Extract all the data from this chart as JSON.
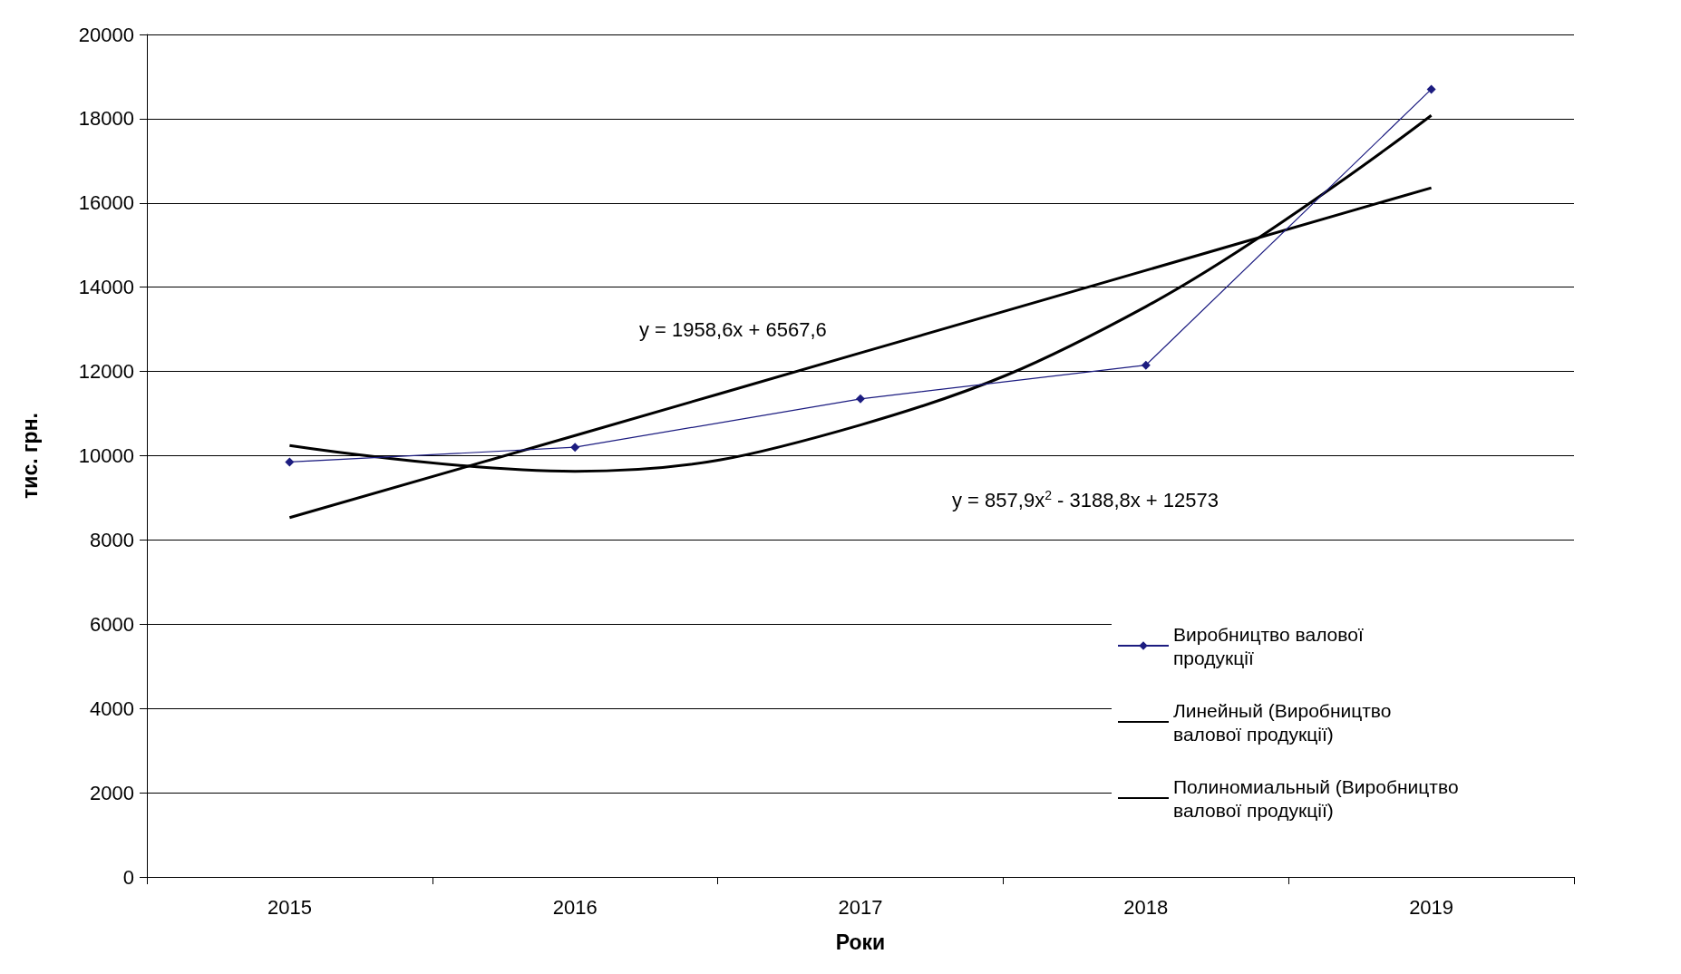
{
  "chart_data": {
    "type": "line",
    "xlabel": "Роки",
    "ylabel": "тис. грн.",
    "categories": [
      "2015",
      "2016",
      "2017",
      "2018",
      "2019"
    ],
    "series": [
      {
        "name": "Виробництво валової продукції",
        "color": "#1c1c80",
        "marker": "diamond",
        "values": [
          9850,
          10200,
          11350,
          12150,
          18700
        ]
      },
      {
        "name": "Линейный (Виробництво валової продукції)",
        "color": "#000000",
        "marker": "none",
        "values": [
          8530,
          10480,
          12440,
          14400,
          16360
        ]
      },
      {
        "name": "Полиномиальный (Виробництво валової продукції)",
        "color": "#000000",
        "marker": "none",
        "values": [
          10240,
          9630,
          10730,
          13540,
          18080
        ]
      }
    ],
    "ylim": [
      0,
      20000
    ],
    "yticks": [
      0,
      2000,
      4000,
      6000,
      8000,
      10000,
      12000,
      14000,
      16000,
      18000,
      20000
    ],
    "grid": "y",
    "legend": "right",
    "annotations": [
      "y = 1958,6x + 6567,6",
      "y = 857,9x$^{2}$ - 3188,8x + 12573"
    ]
  }
}
